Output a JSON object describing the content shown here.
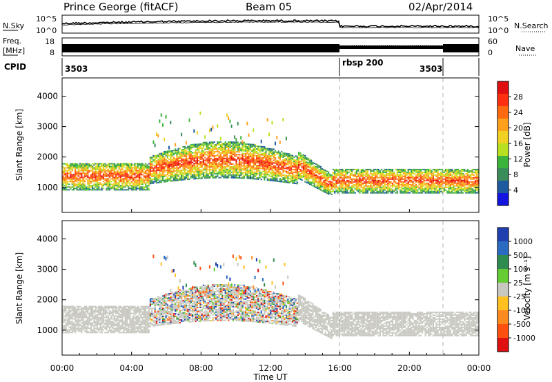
{
  "header": {
    "station": "Prince George (fitACF)",
    "beam": "Beam 05",
    "date": "02/Apr/2014"
  },
  "noise_panel": {
    "left_label": "N.Sky",
    "right_label": "N.Search",
    "left_ticks": [
      "10^5",
      "10^0"
    ],
    "right_ticks": [
      "10^5",
      "10^0"
    ]
  },
  "freq_panel": {
    "left_label_1": "Freq.",
    "left_label_2": "[MHz]",
    "left_ticks": [
      "18",
      "8"
    ],
    "right_label": "Nave",
    "right_ticks": [
      "60",
      "0"
    ]
  },
  "cpid_panel": {
    "label": "CPID",
    "segments": [
      {
        "label": "3503",
        "start_hour": 0,
        "end_hour": 16
      },
      {
        "label": "rbsp 200",
        "start_hour": 16,
        "end_hour": 22
      },
      {
        "label": "3503",
        "start_hour": 22,
        "end_hour": 24
      }
    ]
  },
  "power_colorbar": {
    "title": "Power [dB]",
    "ticks": [
      "28",
      "24",
      "20",
      "16",
      "12",
      "8",
      "4"
    ],
    "colors": [
      "#e01010",
      "#ff3010",
      "#ff6a10",
      "#ffa01a",
      "#f0d020",
      "#b8e020",
      "#3cb43c",
      "#3a8c5a",
      "#1e5aa0",
      "#1414e0"
    ]
  },
  "velocity_colorbar": {
    "title": "Velocity [m s⁻¹]",
    "ticks": [
      "1000",
      "500",
      "100",
      "25",
      "-25",
      "-100",
      "-500",
      "-1000"
    ],
    "colors": [
      "#2040b0",
      "#2a6ac0",
      "#2e8c50",
      "#66cc33",
      "#c8c8c0",
      "#ffc020",
      "#ff8a20",
      "#ff5010",
      "#e01010"
    ]
  },
  "chart_data": [
    {
      "type": "heatmap",
      "title": "Power",
      "ylabel": "Slant Range [km]",
      "xlabel": "Time UT",
      "y_ticks": [
        "1000",
        "2000",
        "3000",
        "4000"
      ],
      "x_ticks": [
        "00:00",
        "04:00",
        "08:00",
        "12:00",
        "16:00",
        "20:00",
        "00:00"
      ],
      "xlim_hours": [
        0,
        24
      ],
      "ylim_km": [
        180,
        4600
      ],
      "dashed_times_hours": [
        16,
        22
      ]
    },
    {
      "type": "heatmap",
      "title": "Velocity",
      "ylabel": "Slant Range [km]",
      "xlabel": "Time UT",
      "y_ticks": [
        "1000",
        "2000",
        "3000",
        "4000"
      ],
      "x_ticks": [
        "00:00",
        "04:00",
        "08:00",
        "12:00",
        "16:00",
        "20:00",
        "00:00"
      ],
      "xlim_hours": [
        0,
        24
      ],
      "ylim_km": [
        180,
        4600
      ],
      "dashed_times_hours": [
        16,
        22
      ]
    }
  ]
}
